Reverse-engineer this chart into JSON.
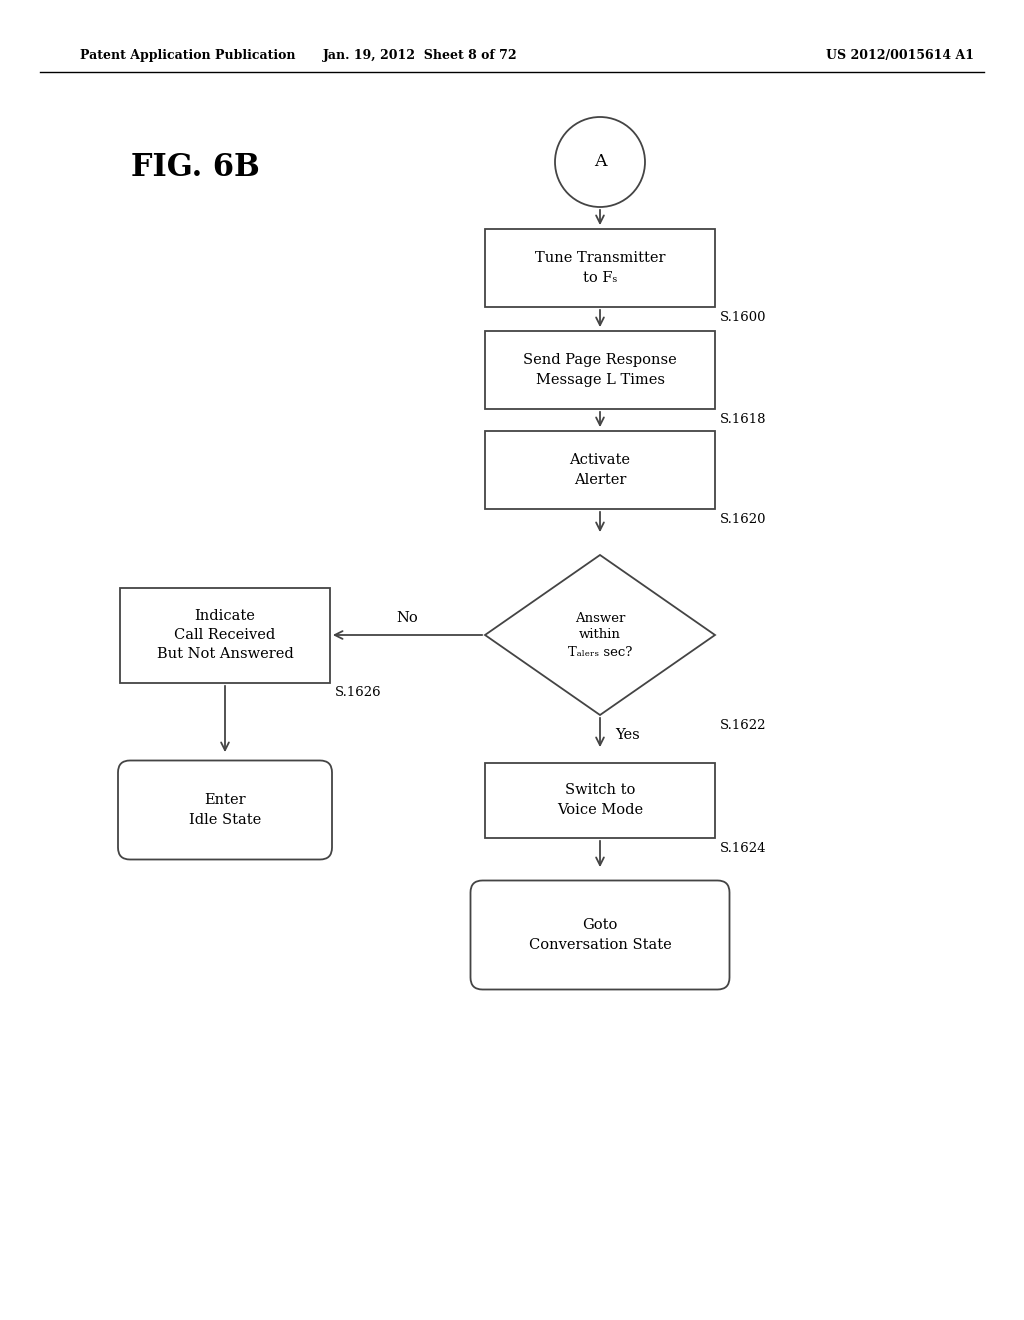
{
  "bg_color": "#ffffff",
  "header_left": "Patent Application Publication",
  "header_mid": "Jan. 19, 2012  Sheet 8 of 72",
  "header_right": "US 2012/0015614 A1",
  "fig_label": "FIG. 6B",
  "edge_color": "#444444",
  "text_color": "#000000",
  "font_size": 10.5,
  "tag_font_size": 9.5,
  "fig_label_fontsize": 22
}
